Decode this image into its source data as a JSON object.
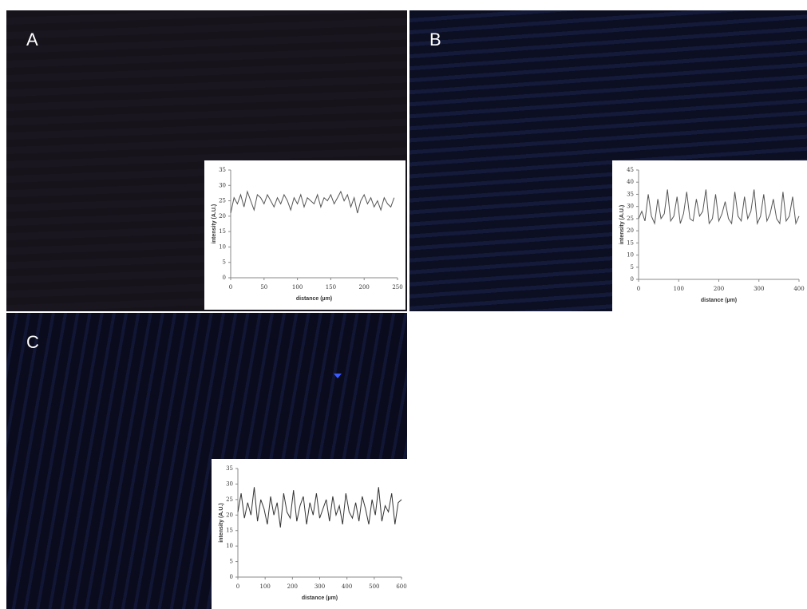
{
  "chart_data": [
    {
      "type": "line",
      "label": "A",
      "color": "#555555",
      "xlabel": "distance (µm)",
      "ylabel": "intensity (A.U.)",
      "x": [
        0,
        5,
        10,
        15,
        20,
        25,
        30,
        35,
        40,
        45,
        50,
        55,
        60,
        65,
        70,
        75,
        80,
        85,
        90,
        95,
        100,
        105,
        110,
        115,
        120,
        125,
        130,
        135,
        140,
        145,
        150,
        155,
        160,
        165,
        170,
        175,
        180,
        185,
        190,
        195,
        200,
        205,
        210,
        215,
        220,
        225,
        230,
        235,
        240,
        245
      ],
      "values": [
        21,
        26,
        24,
        27,
        23,
        28,
        25,
        22,
        27,
        26,
        24,
        27,
        25,
        23,
        26,
        24,
        27,
        25,
        22,
        26,
        24,
        27,
        23,
        26,
        25,
        24,
        27,
        23,
        26,
        25,
        27,
        24,
        26,
        28,
        25,
        27,
        23,
        26,
        21,
        25,
        27,
        24,
        26,
        23,
        25,
        22,
        26,
        24,
        23,
        26
      ],
      "xlim": [
        0,
        250
      ],
      "xticks": [
        0,
        50,
        100,
        150,
        200,
        250
      ],
      "ylim": [
        0,
        35
      ],
      "yticks": [
        0,
        5,
        10,
        15,
        20,
        25,
        30,
        35
      ]
    },
    {
      "type": "line",
      "label": "B",
      "color": "#555555",
      "xlabel": "distance (µm)",
      "ylabel": "intensity (A.U.)",
      "x": [
        0,
        8,
        16,
        24,
        32,
        40,
        48,
        56,
        64,
        72,
        80,
        88,
        96,
        104,
        112,
        120,
        128,
        136,
        144,
        152,
        160,
        168,
        176,
        184,
        192,
        200,
        208,
        216,
        224,
        232,
        240,
        248,
        256,
        264,
        272,
        280,
        288,
        296,
        304,
        312,
        320,
        328,
        336,
        344,
        352,
        360,
        368,
        376,
        384,
        392,
        400
      ],
      "values": [
        25,
        28,
        24,
        35,
        26,
        23,
        33,
        25,
        27,
        37,
        24,
        26,
        34,
        23,
        27,
        36,
        25,
        24,
        33,
        26,
        28,
        37,
        23,
        25,
        35,
        24,
        27,
        32,
        25,
        23,
        36,
        26,
        24,
        34,
        25,
        28,
        37,
        23,
        26,
        35,
        24,
        27,
        33,
        25,
        23,
        36,
        24,
        26,
        34,
        23,
        26
      ],
      "xlim": [
        0,
        400
      ],
      "xticks": [
        0,
        100,
        200,
        300,
        400
      ],
      "ylim": [
        0,
        45
      ],
      "yticks": [
        0,
        5,
        10,
        15,
        20,
        25,
        30,
        35,
        40,
        45
      ]
    },
    {
      "type": "line",
      "label": "C",
      "color": "#333333",
      "xlabel": "distance (µm)",
      "ylabel": "intensity (A.U.)",
      "x": [
        0,
        12,
        24,
        36,
        48,
        60,
        72,
        84,
        96,
        108,
        120,
        132,
        144,
        156,
        168,
        180,
        192,
        204,
        216,
        228,
        240,
        252,
        264,
        276,
        288,
        300,
        312,
        324,
        336,
        348,
        360,
        372,
        384,
        396,
        408,
        420,
        432,
        444,
        456,
        468,
        480,
        492,
        504,
        516,
        528,
        540,
        552,
        564,
        576,
        588,
        600
      ],
      "values": [
        21,
        27,
        19,
        24,
        20,
        29,
        18,
        25,
        22,
        17,
        26,
        20,
        24,
        16,
        27,
        21,
        19,
        28,
        18,
        23,
        26,
        17,
        24,
        20,
        27,
        19,
        22,
        25,
        18,
        26,
        20,
        23,
        17,
        27,
        21,
        19,
        24,
        18,
        26,
        22,
        17,
        25,
        20,
        29,
        18,
        23,
        21,
        27,
        17,
        24,
        25
      ],
      "xlim": [
        0,
        600
      ],
      "xticks": [
        0,
        100,
        200,
        300,
        400,
        500,
        600
      ],
      "ylim": [
        0,
        35
      ],
      "yticks": [
        0,
        5,
        10,
        15,
        20,
        25,
        30,
        35
      ]
    }
  ]
}
